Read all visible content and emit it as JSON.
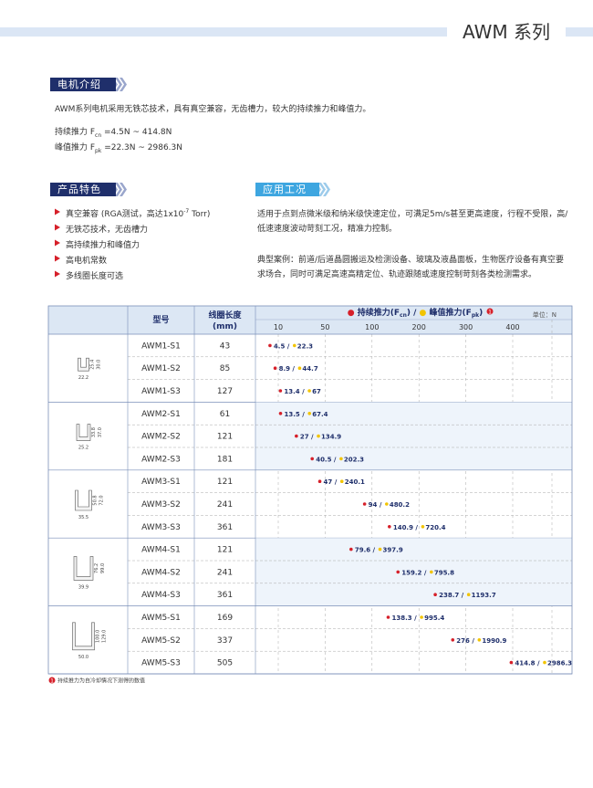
{
  "header": {
    "title": "AWM 系列"
  },
  "intro": {
    "heading": "电机介绍",
    "text": "AWM系列电机采用无铁芯技术，具有真空兼容，无齿槽力，较大的持续推力和峰值力。",
    "lines": [
      {
        "label": "持续推力 F",
        "sub": "cn",
        "rest": " =4.5N ~ 414.8N"
      },
      {
        "label": "峰值推力 F",
        "sub": "pk",
        "rest": " =22.3N ~ 2986.3N"
      }
    ]
  },
  "features": {
    "heading": "产品特色",
    "items": [
      {
        "text": "真空兼容 (RGA测试，高达1x10",
        "sup": "-7",
        "rest": " Torr)"
      },
      "无铁芯技术，无齿槽力",
      "高持续推力和峰值力",
      "高电机常数",
      "多线圈长度可选"
    ]
  },
  "applications": {
    "heading": "应用工况",
    "paragraphs": [
      "适用于点到点微米级和纳米级快速定位，可满足5m/s甚至更高速度，行程不受限，高/低速速度波动苛刻工况，精准力控制。",
      "典型案例：前道/后道晶圆搬运及检测设备、玻璃及液晶面板，生物医疗设备有真空要求场合，同时可满足高速高精定位、轨迹跟随或速度控制苛刻各类检测需求。"
    ]
  },
  "table": {
    "model_header": "型号",
    "length_header": [
      "线圈长度",
      "(mm)"
    ],
    "legend": {
      "continuous": {
        "label": "持续推力(F",
        "sub": "cn",
        "rest": ")"
      },
      "sep": " / ",
      "peak": {
        "label": "峰值推力(F",
        "sub": "pk",
        "rest": ")"
      }
    },
    "unit": "单位：N",
    "ticks": [
      10,
      50,
      100,
      200,
      300,
      400
    ],
    "separator": " / ",
    "groups": [
      {
        "dims": [
          "22.2",
          "25.4",
          "30.0"
        ],
        "rows": [
          {
            "model": "AWM1-S1",
            "length": 43,
            "continuous": 4.5,
            "peak": 22.3
          },
          {
            "model": "AWM1-S2",
            "length": 85,
            "continuous": 8.9,
            "peak": 44.7
          },
          {
            "model": "AWM1-S3",
            "length": 127,
            "continuous": 13.4,
            "peak": 67.0
          }
        ]
      },
      {
        "dims": [
          "25.2",
          "33.8",
          "37.0"
        ],
        "rows": [
          {
            "model": "AWM2-S1",
            "length": 61,
            "continuous": 13.5,
            "peak": 67.4
          },
          {
            "model": "AWM2-S2",
            "length": 121,
            "continuous": 27.0,
            "peak": 134.9
          },
          {
            "model": "AWM2-S3",
            "length": 181,
            "continuous": 40.5,
            "peak": 202.3
          }
        ]
      },
      {
        "dims": [
          "35.5",
          "50.8",
          "72.0"
        ],
        "rows": [
          {
            "model": "AWM3-S1",
            "length": 121,
            "continuous": 47.0,
            "peak": 240.1
          },
          {
            "model": "AWM3-S2",
            "length": 241,
            "continuous": 94.0,
            "peak": 480.2
          },
          {
            "model": "AWM3-S3",
            "length": 361,
            "continuous": 140.9,
            "peak": 720.4
          }
        ]
      },
      {
        "dims": [
          "39.9",
          "76.2",
          "99.0"
        ],
        "rows": [
          {
            "model": "AWM4-S1",
            "length": 121,
            "continuous": 79.6,
            "peak": 397.9
          },
          {
            "model": "AWM4-S2",
            "length": 241,
            "continuous": 159.2,
            "peak": 795.8
          },
          {
            "model": "AWM4-S3",
            "length": 361,
            "continuous": 238.7,
            "peak": 1193.7
          }
        ]
      },
      {
        "dims": [
          "50.0",
          "100.0",
          "129.0"
        ],
        "rows": [
          {
            "model": "AWM5-S1",
            "length": 169,
            "continuous": 138.3,
            "peak": 995.4
          },
          {
            "model": "AWM5-S2",
            "length": 337,
            "continuous": 276,
            "peak": 1990.9
          },
          {
            "model": "AWM5-S3",
            "length": 505,
            "continuous": 414.8,
            "peak": 2986.3
          }
        ]
      }
    ]
  },
  "footnote": {
    "marker": "1",
    "text": "持续推力为自冷却情况下测得的数值"
  }
}
